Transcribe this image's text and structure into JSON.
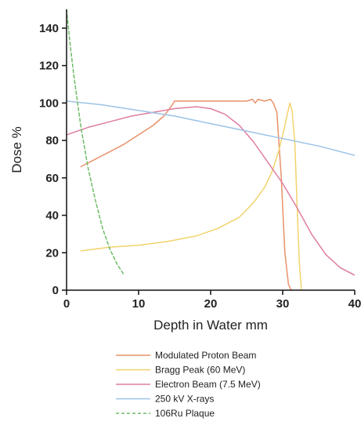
{
  "chart_data": {
    "type": "line",
    "title": "",
    "xlabel": "Depth in Water mm",
    "ylabel": "Dose %",
    "xlim": [
      0,
      40
    ],
    "ylim": [
      0,
      150
    ],
    "x_ticks": [
      "0",
      "10",
      "20",
      "30",
      "40"
    ],
    "y_ticks": [
      "0",
      "20",
      "40",
      "60",
      "80",
      "100",
      "120",
      "140"
    ],
    "grid": false,
    "legend_position": "bottom",
    "series": [
      {
        "name": "Modulated Proton Beam",
        "color": "#e8916a",
        "dash": "solid",
        "x": [
          2,
          4,
          6,
          8,
          10,
          12,
          13.5,
          14.5,
          15,
          17,
          20,
          23,
          25,
          25.8,
          26.2,
          26.6,
          27.5,
          28.3,
          28.7,
          29.2,
          29.8,
          30.3,
          30.8,
          31.2
        ],
        "y": [
          66,
          70,
          74,
          78,
          83,
          88,
          93,
          98,
          101,
          101,
          101,
          101,
          101,
          102,
          100,
          102,
          101,
          102,
          100,
          95,
          60,
          20,
          3,
          0
        ]
      },
      {
        "name": "Bragg Peak (60 MeV)",
        "color": "#f2d36b",
        "dash": "solid",
        "x": [
          2,
          6,
          10,
          14,
          18,
          21,
          24,
          26,
          27.5,
          28.5,
          29.5,
          30.2,
          30.7,
          31.0,
          31.3,
          31.7,
          32.0,
          32.3,
          32.6
        ],
        "y": [
          21,
          23,
          24,
          26,
          29,
          33,
          39,
          47,
          55,
          63,
          75,
          86,
          95,
          100,
          96,
          78,
          45,
          15,
          0
        ]
      },
      {
        "name": "Electron Beam (7.5 MeV)",
        "color": "#df7ea2",
        "dash": "solid",
        "x": [
          0,
          3,
          6,
          9,
          12,
          15,
          18,
          20,
          22,
          24,
          26,
          28,
          30,
          32,
          34,
          36,
          38,
          40
        ],
        "y": [
          83,
          87,
          90,
          93,
          95,
          97,
          98,
          97,
          94,
          88,
          79,
          68,
          57,
          44,
          30,
          19,
          12,
          8
        ]
      },
      {
        "name": "250 kV X-rays",
        "color": "#9cc3e8",
        "dash": "solid",
        "x": [
          0,
          5,
          10,
          15,
          20,
          25,
          30,
          35,
          40
        ],
        "y": [
          101,
          99,
          96,
          93,
          89,
          85,
          81,
          77,
          72
        ]
      },
      {
        "name": "106Ru Plaque",
        "color": "#6dbb66",
        "dash": "dashed",
        "x": [
          0,
          0.5,
          1,
          2,
          3,
          4,
          5,
          6,
          7,
          8
        ],
        "y": [
          150,
          131,
          115,
          87,
          65,
          48,
          33,
          22,
          14,
          8
        ]
      }
    ]
  }
}
